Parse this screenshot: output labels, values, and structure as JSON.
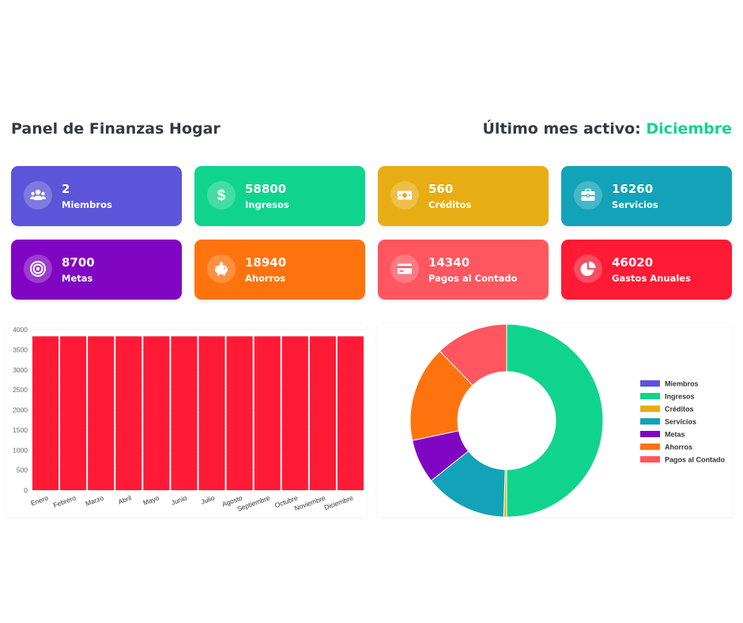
{
  "header": {
    "title": "Panel de Finanzas Hogar",
    "last_month_label": "Último mes activo:",
    "last_month_value": "Diciembre"
  },
  "cards": [
    {
      "value": "2",
      "label": "Miembros",
      "icon": "users-icon",
      "color": "#5c55d9"
    },
    {
      "value": "58800",
      "label": "Ingresos",
      "icon": "dollar-icon",
      "color": "#10d48e"
    },
    {
      "value": "560",
      "label": "Créditos",
      "icon": "money-bill-icon",
      "color": "#e8ad14"
    },
    {
      "value": "16260",
      "label": "Servicios",
      "icon": "briefcase-icon",
      "color": "#13a3b8"
    },
    {
      "value": "8700",
      "label": "Metas",
      "icon": "target-icon",
      "color": "#8106c4"
    },
    {
      "value": "18940",
      "label": "Ahorros",
      "icon": "piggy-bank-icon",
      "color": "#ff730f"
    },
    {
      "value": "14340",
      "label": "Pagos al Contado",
      "icon": "credit-card-icon",
      "color": "#ff5660"
    },
    {
      "value": "46020",
      "label": "Gastos Anuales",
      "icon": "pie-chart-icon",
      "color": "#ff1a35"
    }
  ],
  "chart_data": [
    {
      "type": "bar",
      "categories": [
        "Enero",
        "Febrero",
        "Marzo",
        "Abril",
        "Mayo",
        "Junio",
        "Julio",
        "Agosto",
        "Septiembre",
        "Octubre",
        "Noviembre",
        "Diciembre"
      ],
      "values": [
        3835,
        3835,
        3835,
        3835,
        3835,
        3835,
        3835,
        3835,
        3835,
        3835,
        3835,
        3835
      ],
      "ylim": [
        0,
        4000
      ],
      "yticks": [
        0,
        500,
        1000,
        1500,
        2000,
        2500,
        3000,
        3500,
        4000
      ],
      "color": "#ff1a35",
      "grid": true
    },
    {
      "type": "pie",
      "donut": true,
      "legend_position": "right",
      "labels": [
        "Miembros",
        "Ingresos",
        "Créditos",
        "Servicios",
        "Metas",
        "Ahorros",
        "Pagos al Contado"
      ],
      "values": [
        2,
        58800,
        560,
        16260,
        8700,
        18940,
        14340
      ],
      "colors": [
        "#5c55d9",
        "#10d48e",
        "#e8ad14",
        "#13a3b8",
        "#8106c4",
        "#ff730f",
        "#ff5660"
      ]
    }
  ]
}
